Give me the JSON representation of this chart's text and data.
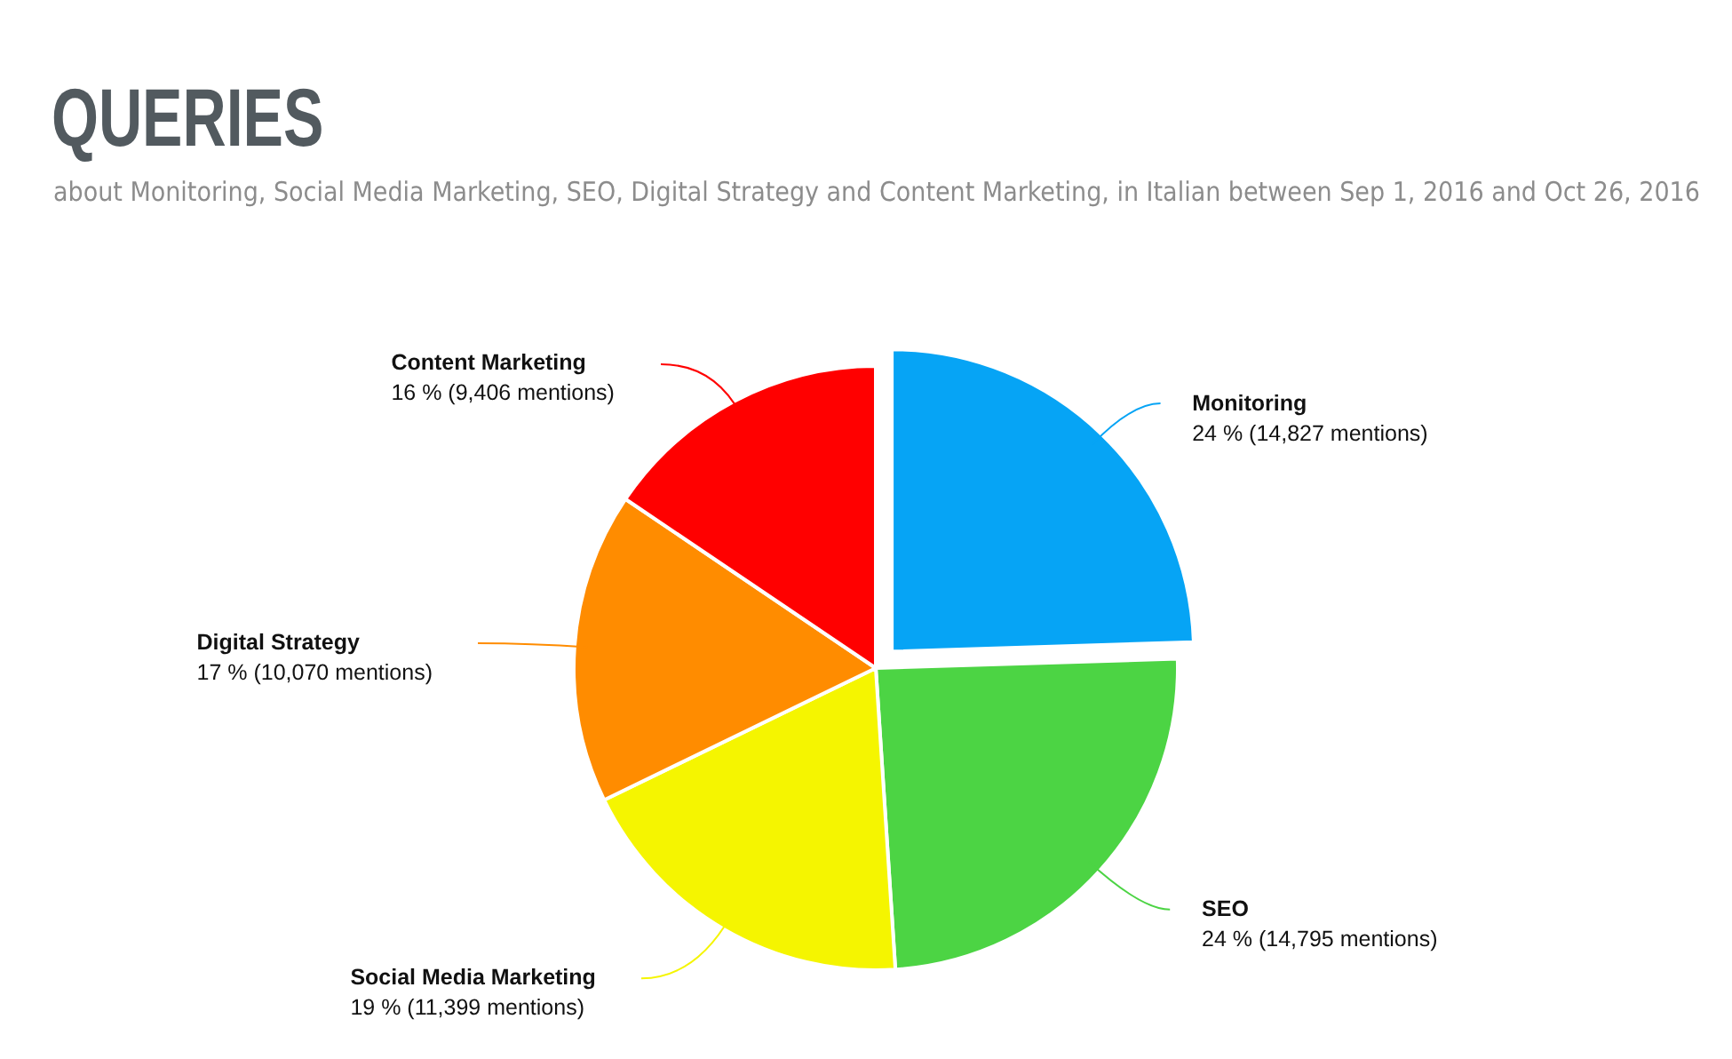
{
  "chart_data": {
    "type": "pie",
    "title": "QUERIES",
    "subtitle": "about Monitoring, Social Media Marketing, SEO, Digital Strategy and Content Marketing, in Italian between Sep 1, 2016 and Oct 26, 2016",
    "categories": [
      "Monitoring",
      "SEO",
      "Social Media Marketing",
      "Digital Strategy",
      "Content Marketing"
    ],
    "values": [
      14827,
      14795,
      11399,
      10070,
      9406
    ],
    "value_labels": [
      "24 % (14,827 mentions)",
      "24 % (14,795 mentions)",
      "19 % (11,399 mentions)",
      "17 % (10,070 mentions)",
      "16 % (9,406 mentions)"
    ],
    "colors": [
      "#06a4f5",
      "#4cd444",
      "#f5f500",
      "#ff8c00",
      "#ff0000"
    ],
    "legend": false
  }
}
